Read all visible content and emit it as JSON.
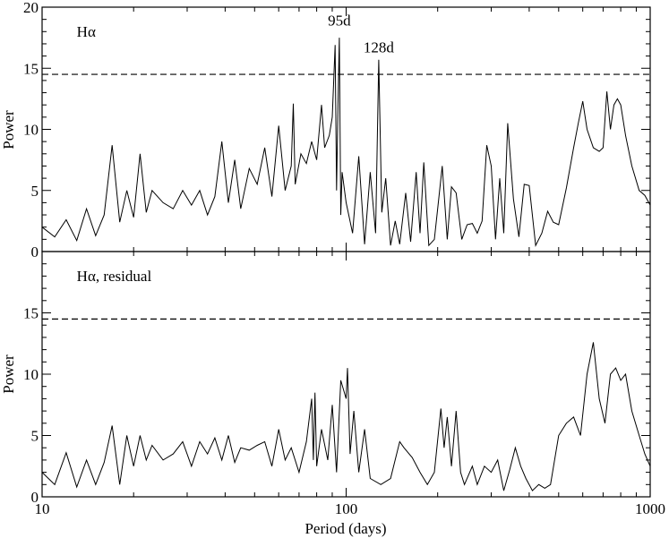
{
  "chart_data": [
    {
      "type": "line",
      "panel": "top",
      "title": "",
      "xlabel": "",
      "ylabel": "Power",
      "xscale": "log",
      "xlim": [
        10,
        1000
      ],
      "ylim": [
        0,
        20
      ],
      "yticks": [
        "0",
        "5",
        "10",
        "15",
        "20"
      ],
      "legend": "none",
      "grid": false,
      "annotations": [
        {
          "text": "Hα",
          "x": 13,
          "y": 17.6
        },
        {
          "text": "95d",
          "x": 95,
          "y": 18.5
        },
        {
          "text": "128d",
          "x": 128,
          "y": 16.3
        }
      ],
      "threshold": {
        "y": 14.5,
        "style": "dashed"
      },
      "series": [
        {
          "x": [
            10,
            11,
            12,
            13,
            14,
            15,
            16,
            17,
            18,
            19,
            20,
            21,
            22,
            23,
            25,
            27,
            29,
            31,
            33,
            35,
            37,
            39,
            41,
            43,
            45,
            48,
            51,
            54,
            57,
            60,
            63,
            66,
            67,
            68,
            71,
            74,
            77,
            80,
            83,
            85,
            88,
            90,
            92,
            93,
            94,
            95,
            96,
            97,
            100,
            105,
            110,
            115,
            120,
            125,
            128,
            131,
            135,
            140,
            145,
            150,
            157,
            163,
            170,
            175,
            180,
            187,
            195,
            200,
            207,
            215,
            222,
            230,
            240,
            250,
            260,
            270,
            280,
            290,
            300,
            310,
            320,
            330,
            340,
            355,
            370,
            385,
            400,
            420,
            440,
            460,
            480,
            500,
            530,
            560,
            580,
            600,
            620,
            650,
            680,
            700,
            720,
            740,
            760,
            780,
            800,
            830,
            870,
            920,
            960,
            1000
          ],
          "y": [
            2.0,
            1.2,
            2.6,
            0.9,
            3.5,
            1.3,
            3.0,
            8.7,
            2.4,
            5.0,
            2.8,
            8.0,
            3.2,
            5.0,
            4.0,
            3.5,
            5.0,
            3.8,
            5.0,
            3.0,
            4.5,
            9.0,
            4.0,
            7.5,
            3.5,
            6.8,
            5.5,
            8.5,
            4.5,
            10.3,
            5.0,
            7.0,
            12.1,
            5.5,
            8.0,
            7.2,
            9.0,
            7.5,
            12.0,
            8.5,
            9.5,
            11.0,
            16.9,
            5.0,
            12.0,
            17.5,
            3.0,
            6.5,
            4.0,
            1.5,
            7.8,
            0.6,
            6.5,
            1.5,
            15.7,
            3.2,
            6.0,
            0.5,
            2.5,
            0.6,
            4.8,
            0.8,
            6.5,
            1.5,
            7.3,
            0.5,
            1.0,
            3.5,
            7.0,
            1.0,
            5.3,
            4.8,
            1.0,
            2.2,
            2.3,
            1.5,
            2.5,
            8.7,
            7.0,
            1.0,
            6.0,
            1.5,
            10.5,
            4.3,
            1.2,
            5.5,
            5.4,
            0.5,
            1.5,
            3.3,
            2.4,
            2.2,
            5.2,
            8.5,
            10.5,
            12.3,
            10.0,
            8.5,
            8.2,
            8.5,
            13.1,
            10.0,
            12.0,
            12.5,
            12.0,
            9.5,
            7.0,
            5.0,
            4.6,
            3.8
          ]
        }
      ]
    },
    {
      "type": "line",
      "panel": "bottom",
      "title": "",
      "xlabel": "Period (days)",
      "ylabel": "Power",
      "xscale": "log",
      "xlim": [
        10,
        1000
      ],
      "ylim": [
        0,
        20
      ],
      "xticks": [
        "10",
        "100",
        "1000"
      ],
      "yticks": [
        "0",
        "5",
        "10",
        "15"
      ],
      "legend": "none",
      "grid": false,
      "annotations": [
        {
          "text": "Hα, residual",
          "x": 13,
          "y": 17.6
        }
      ],
      "threshold": {
        "y": 14.5,
        "style": "dashed"
      },
      "series": [
        {
          "x": [
            10,
            11,
            12,
            13,
            14,
            15,
            16,
            17,
            18,
            19,
            20,
            21,
            22,
            23,
            25,
            27,
            29,
            31,
            33,
            35,
            37,
            39,
            41,
            43,
            45,
            48,
            51,
            54,
            57,
            60,
            63,
            66,
            70,
            74,
            77,
            78,
            79,
            80,
            83,
            87,
            90,
            93,
            96,
            100,
            101,
            103,
            106,
            110,
            115,
            120,
            130,
            140,
            150,
            155,
            165,
            175,
            185,
            195,
            205,
            210,
            215,
            222,
            230,
            238,
            245,
            260,
            270,
            285,
            300,
            315,
            330,
            345,
            360,
            375,
            390,
            410,
            430,
            450,
            470,
            500,
            530,
            560,
            590,
            620,
            650,
            680,
            710,
            740,
            770,
            800,
            830,
            870,
            920,
            960,
            1000
          ],
          "y": [
            2.0,
            1.0,
            3.6,
            0.8,
            3.0,
            1.0,
            2.8,
            5.8,
            1.0,
            5.0,
            2.5,
            5.0,
            3.0,
            4.2,
            3.0,
            3.5,
            4.5,
            2.5,
            4.5,
            3.5,
            4.8,
            3.0,
            5.0,
            2.8,
            4.0,
            3.8,
            4.2,
            4.5,
            2.5,
            5.5,
            3.0,
            4.0,
            2.0,
            4.5,
            8.0,
            3.0,
            8.5,
            2.5,
            5.5,
            3.0,
            7.5,
            2.0,
            9.5,
            8.0,
            10.5,
            3.5,
            7.0,
            2.0,
            5.5,
            1.5,
            1.0,
            1.5,
            4.5,
            4.0,
            3.2,
            2.0,
            1.0,
            2.0,
            7.2,
            4.0,
            6.5,
            2.5,
            7.0,
            2.0,
            1.0,
            2.5,
            1.0,
            2.5,
            2.0,
            3.0,
            0.5,
            2.2,
            4.0,
            2.5,
            1.5,
            0.5,
            1.0,
            0.7,
            1.0,
            5.0,
            6.0,
            6.5,
            5.0,
            10.0,
            12.6,
            8.0,
            6.0,
            10.0,
            10.5,
            9.5,
            10.0,
            7.0,
            5.0,
            3.5,
            2.5
          ]
        }
      ]
    }
  ]
}
